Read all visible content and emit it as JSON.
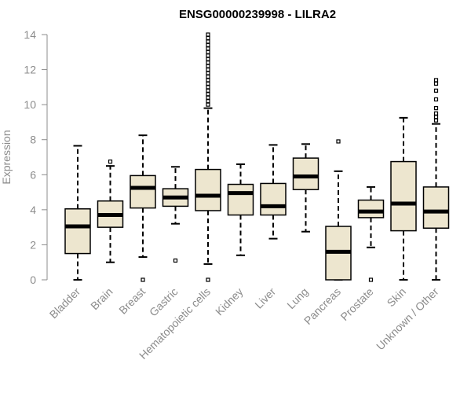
{
  "chart_data": {
    "type": "boxplot",
    "title": "ENSG00000239998 - LILRA2",
    "xlabel": "",
    "ylabel": "Expression",
    "ylim": [
      0,
      14
    ],
    "yticks": [
      "0",
      "2",
      "4",
      "6",
      "8",
      "10",
      "12",
      "14"
    ],
    "colors": {
      "box_fill": "#ede6cf",
      "box_stroke": "#000000",
      "axis": "#8c8c8c"
    },
    "categories": [
      "Bladder",
      "Brain",
      "Breast",
      "Gastric",
      "Hematopoietic cells",
      "Kidney",
      "Liver",
      "Lung",
      "Pancreas",
      "Prostate",
      "Skin",
      "Unknown / Other"
    ],
    "boxes": [
      {
        "name": "Bladder",
        "min": 0.0,
        "q1": 1.5,
        "median": 3.05,
        "q3": 4.05,
        "max": 7.65,
        "outliers": []
      },
      {
        "name": "Brain",
        "min": 1.0,
        "q1": 3.0,
        "median": 3.7,
        "q3": 4.5,
        "max": 6.5,
        "outliers": [
          6.75
        ]
      },
      {
        "name": "Breast",
        "min": 1.3,
        "q1": 4.1,
        "median": 5.25,
        "q3": 5.95,
        "max": 8.25,
        "outliers": [
          0.0
        ]
      },
      {
        "name": "Gastric",
        "min": 3.2,
        "q1": 4.2,
        "median": 4.7,
        "q3": 5.2,
        "max": 6.45,
        "outliers": [
          1.1
        ]
      },
      {
        "name": "Hematopoietic cells",
        "min": 0.9,
        "q1": 3.95,
        "median": 4.8,
        "q3": 6.3,
        "max": 9.8,
        "outliers": [
          0.0,
          10.0,
          10.2,
          10.4,
          10.6,
          10.8,
          11.0,
          11.2,
          11.4,
          11.6,
          11.8,
          12.0,
          12.2,
          12.4,
          12.6,
          12.8,
          13.0,
          13.2,
          13.4,
          13.6,
          13.8,
          14.0
        ]
      },
      {
        "name": "Kidney",
        "min": 1.4,
        "q1": 3.7,
        "median": 4.95,
        "q3": 5.45,
        "max": 6.6,
        "outliers": []
      },
      {
        "name": "Liver",
        "min": 2.35,
        "q1": 3.7,
        "median": 4.2,
        "q3": 5.5,
        "max": 7.7,
        "outliers": []
      },
      {
        "name": "Lung",
        "min": 2.75,
        "q1": 5.15,
        "median": 5.9,
        "q3": 6.95,
        "max": 7.75,
        "outliers": []
      },
      {
        "name": "Pancreas",
        "min": 0.0,
        "q1": 0.0,
        "median": 1.6,
        "q3": 3.05,
        "max": 6.2,
        "outliers": [
          7.9
        ]
      },
      {
        "name": "Prostate",
        "min": 1.85,
        "q1": 3.55,
        "median": 3.9,
        "q3": 4.55,
        "max": 5.3,
        "outliers": [
          0.0
        ]
      },
      {
        "name": "Skin",
        "min": 0.0,
        "q1": 2.8,
        "median": 4.35,
        "q3": 6.75,
        "max": 9.25,
        "outliers": []
      },
      {
        "name": "Unknown / Other",
        "min": 0.0,
        "q1": 2.95,
        "median": 3.9,
        "q3": 5.3,
        "max": 8.9,
        "outliers": [
          9.1,
          9.3,
          9.5,
          9.8,
          10.3,
          10.8,
          11.2,
          11.4
        ]
      }
    ]
  }
}
